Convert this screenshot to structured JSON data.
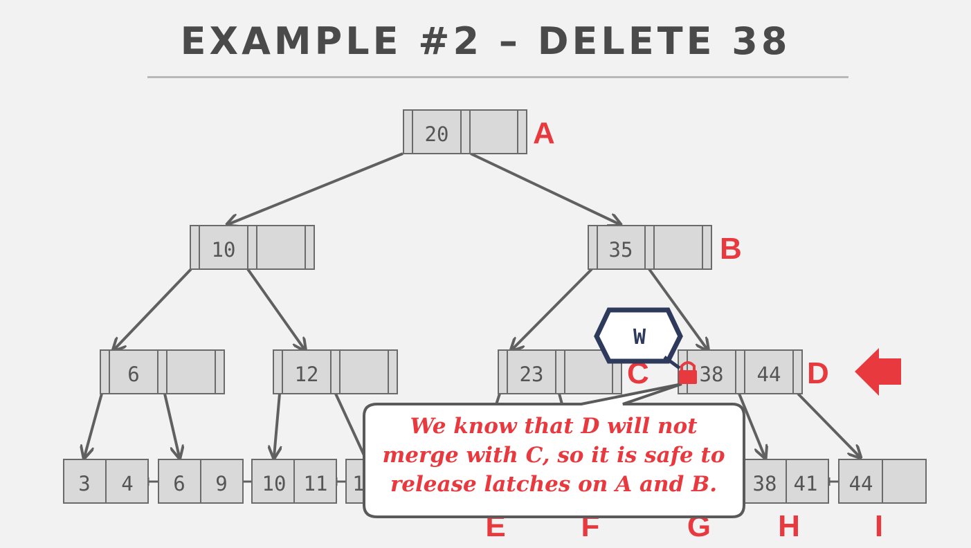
{
  "title": "EXAMPLE #2 – DELETE 38",
  "nodes": {
    "A": {
      "label": "A",
      "keys": [
        "20",
        ""
      ]
    },
    "B": {
      "label": "B",
      "keys": [
        "35",
        ""
      ]
    },
    "C": {
      "label": "C",
      "keys": [
        "23",
        ""
      ]
    },
    "D": {
      "label": "D",
      "keys": [
        "38",
        "44"
      ]
    },
    "inner_6": {
      "keys": [
        "6",
        ""
      ]
    },
    "inner_12": {
      "keys": [
        "12",
        ""
      ]
    }
  },
  "leaves": [
    {
      "keys": [
        "3",
        "4"
      ]
    },
    {
      "keys": [
        "6",
        "9"
      ]
    },
    {
      "keys": [
        "10",
        "11"
      ]
    },
    {
      "keys": [
        "1",
        ""
      ]
    },
    {
      "label": "H",
      "keys": [
        "38",
        "41"
      ]
    },
    {
      "label": "I",
      "keys": [
        "44",
        ""
      ]
    }
  ],
  "leaf_labels": [
    "E",
    "F",
    "G",
    "H",
    "I"
  ],
  "latch": {
    "mode": "W"
  },
  "callout": {
    "line1": "We know that D will not",
    "line2": "merge with C, so it is safe to",
    "line3": "release latches on A and B."
  },
  "colors": {
    "accent": "#e8393f",
    "node": "#d9d9d9",
    "latch": "#2e3a5c"
  }
}
